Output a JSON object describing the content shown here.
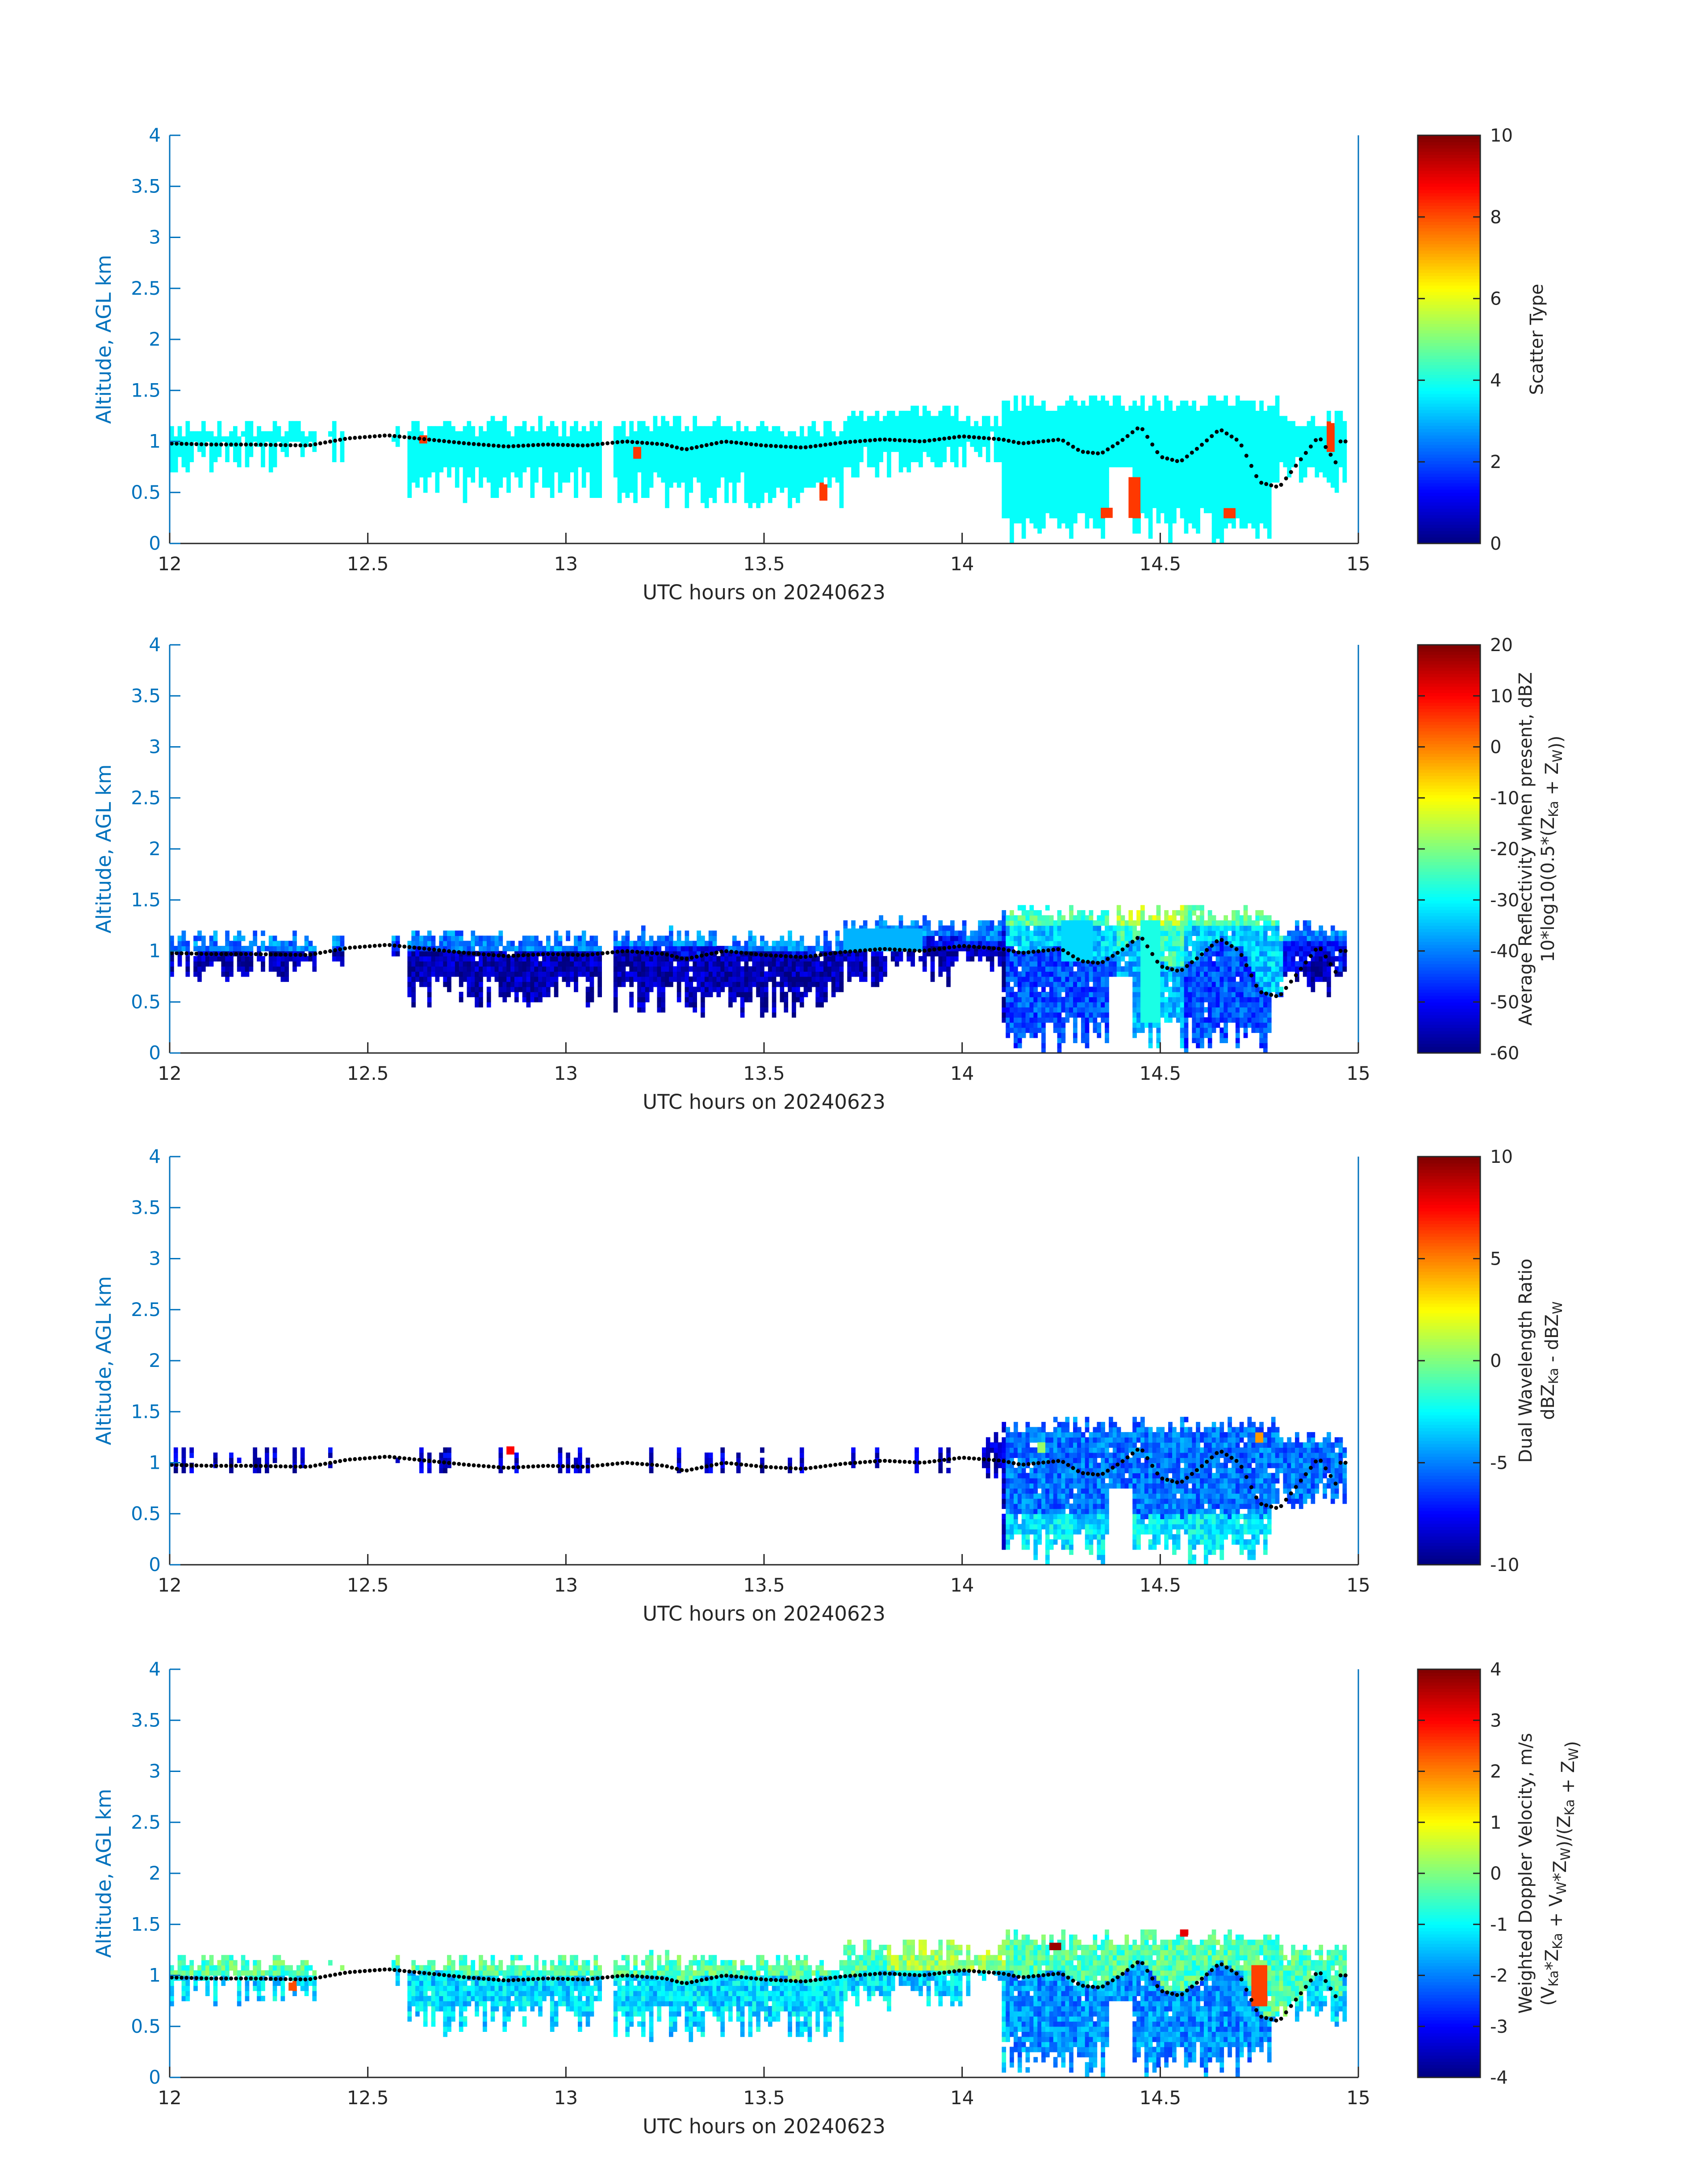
{
  "figure": {
    "background": "#ffffff",
    "axis_color": "#0072bd",
    "text_color": "#262626"
  },
  "chart_data": [
    {
      "type": "heatmap",
      "panel": "scatter-type",
      "xlabel": "UTC hours on 20240623",
      "ylabel": "Altitude, AGL km",
      "xlim": [
        12,
        15
      ],
      "ylim": [
        0,
        4
      ],
      "xticks": [
        "12",
        "12.5",
        "13",
        "13.5",
        "14",
        "14.5",
        "15"
      ],
      "yticks": [
        "0",
        "0.5",
        "1",
        "1.5",
        "2",
        "2.5",
        "3",
        "3.5",
        "4"
      ],
      "colorbar": {
        "label_lines": [
          "Scatter Type"
        ],
        "range": [
          0,
          10
        ],
        "ticks": [
          "0",
          "2",
          "4",
          "6",
          "8",
          "10"
        ]
      },
      "fill_value": 3.8,
      "base": "scatter",
      "features": [
        {
          "x0": 12.63,
          "x1": 12.65,
          "y0": 0.98,
          "y1": 1.06,
          "v": 8.2
        },
        {
          "x0": 13.17,
          "x1": 13.19,
          "y0": 0.83,
          "y1": 0.93,
          "v": 8.2
        },
        {
          "x0": 13.64,
          "x1": 13.66,
          "y0": 0.42,
          "y1": 0.58,
          "v": 8.2
        },
        {
          "x0": 14.35,
          "x1": 14.38,
          "y0": 0.25,
          "y1": 0.35,
          "v": 8.2
        },
        {
          "x0": 14.42,
          "x1": 14.45,
          "y0": 0.25,
          "y1": 0.65,
          "v": 8.2
        },
        {
          "x0": 14.66,
          "x1": 14.69,
          "y0": 0.25,
          "y1": 0.33,
          "v": 8.2
        },
        {
          "x0": 14.92,
          "x1": 14.94,
          "y0": 0.9,
          "y1": 1.18,
          "v": 8.2
        }
      ]
    },
    {
      "type": "heatmap",
      "panel": "reflectivity",
      "xlabel": "UTC hours on 20240623",
      "ylabel": "Altitude, AGL km",
      "xlim": [
        12,
        15
      ],
      "ylim": [
        0,
        4
      ],
      "xticks": [
        "12",
        "12.5",
        "13",
        "13.5",
        "14",
        "14.5",
        "15"
      ],
      "yticks": [
        "0",
        "0.5",
        "1",
        "1.5",
        "2",
        "2.5",
        "3",
        "3.5",
        "4"
      ],
      "colorbar": {
        "label_lines": [
          "Average Reflectivity when present, dBZ",
          "10*log10(0.5*(Z_{Ka} + Z_{W}))"
        ],
        "range": [
          -60,
          20
        ],
        "ticks": [
          "-60",
          "-50",
          "-40",
          "-30",
          "-20",
          "-10",
          "0",
          "10",
          "20"
        ]
      },
      "base": "reflectivity",
      "features": [
        {
          "x0": 14.45,
          "x1": 14.5,
          "y0": 0.3,
          "y1": 1.3,
          "v": -28
        },
        {
          "x0": 14.25,
          "x1": 14.33,
          "y0": 0.9,
          "y1": 1.3,
          "v": -33
        },
        {
          "x0": 13.7,
          "x1": 13.9,
          "y0": 1.0,
          "y1": 1.22,
          "v": -36
        }
      ]
    },
    {
      "type": "heatmap",
      "panel": "dual-wavelength-ratio",
      "xlabel": "UTC hours on 20240623",
      "ylabel": "Altitude, AGL km",
      "xlim": [
        12,
        15
      ],
      "ylim": [
        0,
        4
      ],
      "xticks": [
        "12",
        "12.5",
        "13",
        "13.5",
        "14",
        "14.5",
        "15"
      ],
      "yticks": [
        "0",
        "0.5",
        "1",
        "1.5",
        "2",
        "2.5",
        "3",
        "3.5",
        "4"
      ],
      "colorbar": {
        "label_lines": [
          "Dual Wavelength Ratio",
          "dBZ_{Ka} - dBZ_{W}"
        ],
        "range": [
          -10,
          10
        ],
        "ticks": [
          "-10",
          "-5",
          "0",
          "5",
          "10"
        ]
      },
      "base": "dwr",
      "features": [
        {
          "x0": 12.85,
          "x1": 12.87,
          "y0": 1.08,
          "y1": 1.16,
          "v": 7.5
        },
        {
          "x0": 14.74,
          "x1": 14.76,
          "y0": 1.2,
          "y1": 1.28,
          "v": 4.5
        },
        {
          "x0": 14.19,
          "x1": 14.21,
          "y0": 1.1,
          "y1": 1.2,
          "v": 0.5
        }
      ]
    },
    {
      "type": "heatmap",
      "panel": "doppler-velocity",
      "xlabel": "UTC hours on 20240623",
      "ylabel": "Altitude, AGL km",
      "xlim": [
        12,
        15
      ],
      "ylim": [
        0,
        4
      ],
      "xticks": [
        "12",
        "12.5",
        "13",
        "13.5",
        "14",
        "14.5",
        "15"
      ],
      "yticks": [
        "0",
        "0.5",
        "1",
        "1.5",
        "2",
        "2.5",
        "3",
        "3.5",
        "4"
      ],
      "colorbar": {
        "label_lines": [
          "Weighted Doppler Velocity, m/s",
          "(V_{Ka}*Z_{Ka} + V_{W}*Z_{W})/(Z_{Ka} + Z_{W})"
        ],
        "range": [
          -4,
          4
        ],
        "ticks": [
          "-4",
          "-3",
          "-2",
          "-1",
          "0",
          "1",
          "2",
          "3",
          "4"
        ]
      },
      "base": "velocity",
      "features": [
        {
          "x0": 14.73,
          "x1": 14.77,
          "y0": 0.7,
          "y1": 1.1,
          "v": 2.5
        },
        {
          "x0": 14.22,
          "x1": 14.25,
          "y0": 1.25,
          "y1": 1.32,
          "v": 3.8
        },
        {
          "x0": 14.55,
          "x1": 14.57,
          "y0": 1.38,
          "y1": 1.45,
          "v": 3.2
        },
        {
          "x0": 12.3,
          "x1": 12.32,
          "y0": 0.85,
          "y1": 0.93,
          "v": 2.4
        }
      ]
    }
  ],
  "cloud_profile": {
    "segments": [
      {
        "start": 12.0,
        "end": 12.37,
        "top": 1.1,
        "bottom": 0.88
      },
      {
        "start": 12.4,
        "end": 12.44,
        "top": 1.08,
        "bottom": 0.98
      },
      {
        "start": 12.56,
        "end": 12.58,
        "top": 1.1,
        "bottom": 1.0
      },
      {
        "start": 12.6,
        "end": 13.09,
        "top": 1.1,
        "bottom": 0.62
      },
      {
        "start": 13.12,
        "end": 13.4,
        "top": 1.13,
        "bottom": 0.55
      },
      {
        "start": 13.4,
        "end": 13.7,
        "top": 1.1,
        "bottom": 0.55
      },
      {
        "start": 13.7,
        "end": 14.0,
        "top": 1.25,
        "bottom": 0.85
      },
      {
        "start": 14.0,
        "end": 14.1,
        "top": 1.2,
        "bottom": 0.95
      },
      {
        "start": 14.1,
        "end": 14.8,
        "top": 1.35,
        "bottom": 0.2
      },
      {
        "start": 14.8,
        "end": 14.97,
        "top": 1.2,
        "bottom": 0.7
      }
    ],
    "cloud_base": [
      [
        12.0,
        0.98
      ],
      [
        12.1,
        0.97
      ],
      [
        12.2,
        0.97
      ],
      [
        12.35,
        0.96
      ],
      [
        12.45,
        1.03
      ],
      [
        12.55,
        1.06
      ],
      [
        12.65,
        1.02
      ],
      [
        12.75,
        0.98
      ],
      [
        12.85,
        0.95
      ],
      [
        12.95,
        0.97
      ],
      [
        13.05,
        0.96
      ],
      [
        13.15,
        1.0
      ],
      [
        13.25,
        0.97
      ],
      [
        13.3,
        0.92
      ],
      [
        13.4,
        1.0
      ],
      [
        13.5,
        0.96
      ],
      [
        13.6,
        0.94
      ],
      [
        13.7,
        0.99
      ],
      [
        13.8,
        1.02
      ],
      [
        13.9,
        1.0
      ],
      [
        14.0,
        1.05
      ],
      [
        14.1,
        1.02
      ],
      [
        14.15,
        0.98
      ],
      [
        14.2,
        1.0
      ],
      [
        14.25,
        1.02
      ],
      [
        14.3,
        0.9
      ],
      [
        14.35,
        0.88
      ],
      [
        14.4,
        1.0
      ],
      [
        14.45,
        1.15
      ],
      [
        14.5,
        0.85
      ],
      [
        14.55,
        0.8
      ],
      [
        14.6,
        0.95
      ],
      [
        14.65,
        1.12
      ],
      [
        14.7,
        1.0
      ],
      [
        14.75,
        0.6
      ],
      [
        14.8,
        0.55
      ],
      [
        14.85,
        0.8
      ],
      [
        14.9,
        1.05
      ],
      [
        14.95,
        0.75
      ]
    ]
  }
}
